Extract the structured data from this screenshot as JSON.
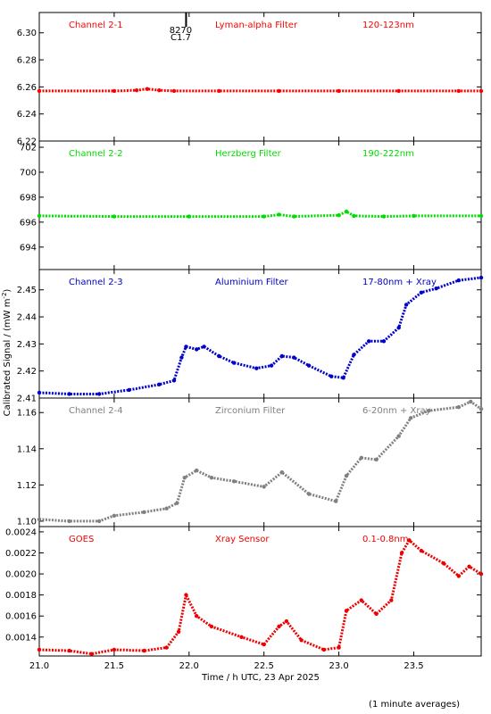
{
  "figure": {
    "ylabel": "Calibrated Signal / (mW m",
    "ylabel_sup": "-2",
    "ylabel_close": ")",
    "xlabel": "Time / h UTC, 23 Apr 2025",
    "footnote": "(1 minute averages)",
    "flare_marker": {
      "time": 21.98,
      "label_top": "8270",
      "label_bottom": "C1.7"
    },
    "xlim": [
      21.0,
      23.95
    ],
    "xticks": [
      "21.0",
      "21.5",
      "22.0",
      "22.5",
      "23.0",
      "23.5"
    ]
  },
  "chart_data": [
    {
      "type": "scatter",
      "channel": "Channel 2-1",
      "filter": "Lyman-alpha Filter",
      "band": "120-123nm",
      "color": "#ff0000",
      "ylim": [
        6.22,
        6.315
      ],
      "yticks": [
        "6.22",
        "6.24",
        "6.26",
        "6.28",
        "6.30"
      ],
      "series": [
        {
          "x": [
            21.0,
            21.5,
            21.65,
            21.72,
            21.8,
            21.9,
            22.2,
            22.6,
            23.0,
            23.4,
            23.8,
            23.95
          ],
          "y": [
            6.257,
            6.257,
            6.2575,
            6.2585,
            6.2575,
            6.257,
            6.257,
            6.257,
            6.257,
            6.257,
            6.257,
            6.257
          ]
        }
      ]
    },
    {
      "type": "scatter",
      "channel": "Channel 2-2",
      "filter": "Herzberg Filter",
      "band": "190-222nm",
      "color": "#00dd00",
      "ylim": [
        692.2,
        702.5
      ],
      "yticks": [
        "694",
        "696",
        "698",
        "700",
        "702"
      ],
      "series": [
        {
          "x": [
            21.0,
            21.5,
            22.0,
            22.5,
            22.6,
            22.7,
            23.0,
            23.05,
            23.1,
            23.3,
            23.5,
            23.95
          ],
          "y": [
            696.5,
            696.45,
            696.45,
            696.45,
            696.6,
            696.45,
            696.55,
            696.85,
            696.5,
            696.45,
            696.5,
            696.5
          ]
        }
      ]
    },
    {
      "type": "scatter",
      "channel": "Channel 2-3",
      "filter": "Aluminium Filter",
      "band": "17-80nm + Xray",
      "color": "#0000cc",
      "ylim": [
        2.41,
        2.4575
      ],
      "yticks": [
        "2.41",
        "2.42",
        "2.43",
        "2.44",
        "2.45"
      ],
      "series": [
        {
          "x": [
            21.0,
            21.2,
            21.4,
            21.6,
            21.8,
            21.9,
            21.95,
            21.98,
            22.05,
            22.1,
            22.2,
            22.3,
            22.45,
            22.55,
            22.62,
            22.7,
            22.8,
            22.95,
            23.03,
            23.1,
            23.2,
            23.3,
            23.4,
            23.45,
            23.55,
            23.65,
            23.8,
            23.95
          ],
          "y": [
            2.412,
            2.4115,
            2.4115,
            2.413,
            2.415,
            2.4165,
            2.425,
            2.429,
            2.428,
            2.429,
            2.4255,
            2.423,
            2.421,
            2.422,
            2.4255,
            2.425,
            2.422,
            2.418,
            2.4175,
            2.426,
            2.431,
            2.431,
            2.436,
            2.4445,
            2.449,
            2.4505,
            2.4535,
            2.4545
          ]
        }
      ]
    },
    {
      "type": "scatter",
      "channel": "Channel 2-4",
      "filter": "Zirconium Filter",
      "band": "6-20nm + Xray",
      "color": "#808080",
      "ylim": [
        1.097,
        1.168
      ],
      "yticks": [
        "1.10",
        "1.12",
        "1.14",
        "1.16"
      ],
      "series": [
        {
          "x": [
            21.0,
            21.2,
            21.4,
            21.5,
            21.7,
            21.85,
            21.92,
            21.97,
            22.05,
            22.15,
            22.3,
            22.5,
            22.62,
            22.8,
            22.98,
            23.05,
            23.15,
            23.25,
            23.4,
            23.48,
            23.6,
            23.8,
            23.88,
            23.95
          ],
          "y": [
            1.101,
            1.1,
            1.1,
            1.103,
            1.105,
            1.107,
            1.11,
            1.124,
            1.128,
            1.124,
            1.122,
            1.119,
            1.127,
            1.115,
            1.111,
            1.125,
            1.135,
            1.134,
            1.147,
            1.157,
            1.161,
            1.163,
            1.166,
            1.162
          ]
        }
      ]
    },
    {
      "type": "scatter",
      "channel": "GOES",
      "filter": "Xray Sensor",
      "band": "0.1-0.8nm",
      "color": "#ee0000",
      "ylim": [
        0.00122,
        0.00245
      ],
      "yticks": [
        "0.0014",
        "0.0016",
        "0.0018",
        "0.0020",
        "0.0022",
        "0.0024"
      ],
      "series": [
        {
          "x": [
            21.0,
            21.2,
            21.35,
            21.5,
            21.7,
            21.85,
            21.93,
            21.98,
            22.05,
            22.15,
            22.35,
            22.5,
            22.6,
            22.65,
            22.75,
            22.9,
            23.0,
            23.05,
            23.15,
            23.25,
            23.35,
            23.42,
            23.47,
            23.55,
            23.7,
            23.8,
            23.87,
            23.95
          ],
          "y": [
            0.00128,
            0.00127,
            0.00124,
            0.00128,
            0.00127,
            0.0013,
            0.00145,
            0.0018,
            0.0016,
            0.0015,
            0.0014,
            0.00133,
            0.0015,
            0.00155,
            0.00137,
            0.00128,
            0.0013,
            0.00165,
            0.00175,
            0.00162,
            0.00175,
            0.0022,
            0.00232,
            0.00222,
            0.0021,
            0.00198,
            0.00207,
            0.002
          ]
        }
      ]
    }
  ]
}
